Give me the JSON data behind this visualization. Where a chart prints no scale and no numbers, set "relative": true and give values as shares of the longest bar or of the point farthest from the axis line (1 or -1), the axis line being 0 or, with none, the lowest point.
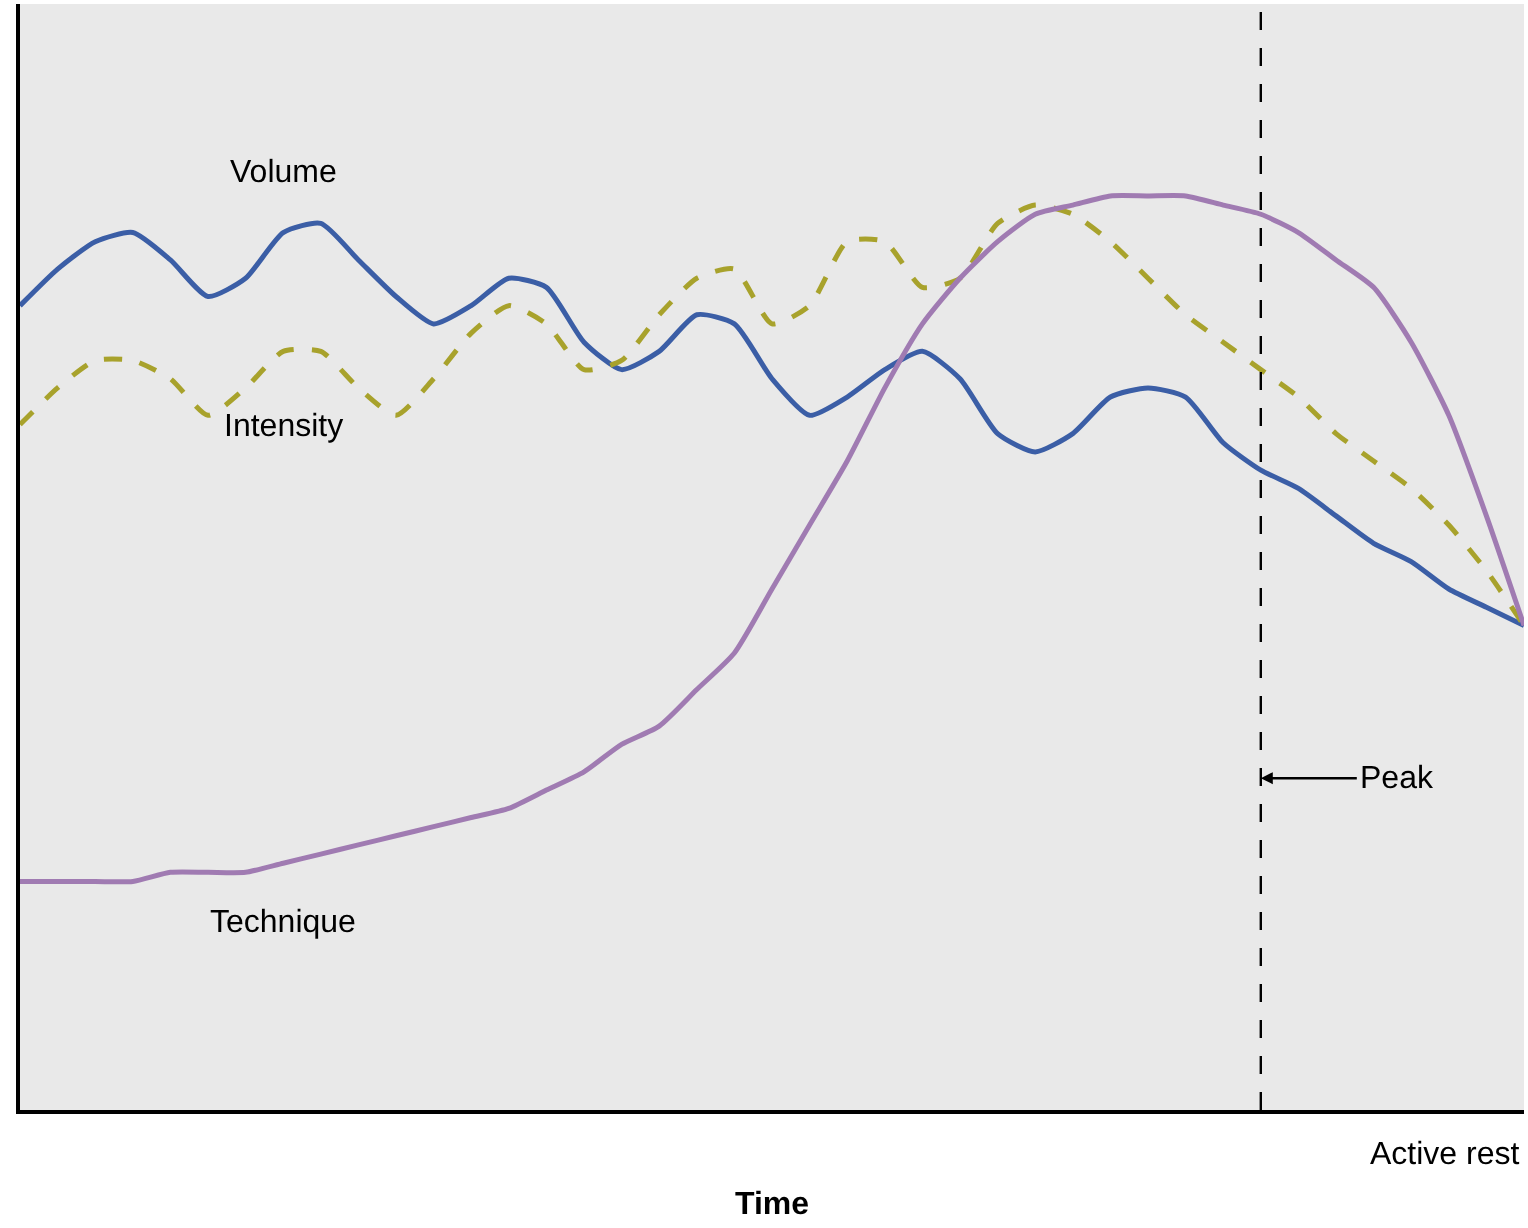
{
  "chart_data": {
    "type": "line",
    "relative": true,
    "xlabel": "Time",
    "categories": [
      null,
      null,
      null,
      null,
      null,
      null,
      null,
      null,
      null,
      null,
      null,
      null,
      null,
      null,
      null,
      null,
      null,
      null,
      null,
      null,
      null,
      null,
      null,
      null,
      null,
      null,
      null,
      null,
      null,
      null,
      null,
      null,
      null,
      null,
      null,
      null,
      null,
      null,
      null,
      null,
      null
    ],
    "series": [
      {
        "name": "Volume",
        "color": "#3b5ea6",
        "line_style": "solid",
        "values": [
          0.88,
          0.92,
          0.95,
          0.96,
          0.93,
          0.89,
          0.91,
          0.96,
          0.97,
          0.93,
          0.89,
          0.86,
          0.88,
          0.91,
          0.9,
          0.84,
          0.81,
          0.83,
          0.87,
          0.86,
          0.8,
          0.76,
          0.78,
          0.81,
          0.83,
          0.8,
          0.74,
          0.72,
          0.74,
          0.78,
          0.79,
          0.78,
          0.73,
          0.7,
          0.68,
          0.65,
          0.62,
          0.6,
          0.57,
          0.55,
          0.53
        ]
      },
      {
        "name": "Intensity",
        "color": "#a8a22c",
        "line_style": "dashed",
        "values": [
          0.75,
          0.79,
          0.82,
          0.82,
          0.8,
          0.76,
          0.79,
          0.83,
          0.83,
          0.79,
          0.76,
          0.8,
          0.85,
          0.88,
          0.86,
          0.81,
          0.82,
          0.87,
          0.91,
          0.92,
          0.86,
          0.88,
          0.95,
          0.95,
          0.9,
          0.91,
          0.97,
          0.99,
          0.98,
          0.95,
          0.91,
          0.87,
          0.84,
          0.81,
          0.78,
          0.74,
          0.71,
          0.68,
          0.64,
          0.59,
          0.53
        ]
      },
      {
        "name": "Technique",
        "color": "#a07bb2",
        "line_style": "solid",
        "values": [
          0.25,
          0.25,
          0.25,
          0.25,
          0.26,
          0.26,
          0.26,
          0.27,
          0.28,
          0.29,
          0.3,
          0.31,
          0.32,
          0.33,
          0.35,
          0.37,
          0.4,
          0.42,
          0.46,
          0.5,
          0.57,
          0.64,
          0.71,
          0.79,
          0.86,
          0.91,
          0.95,
          0.98,
          0.99,
          1,
          1,
          1,
          0.99,
          0.98,
          0.96,
          0.93,
          0.9,
          0.84,
          0.76,
          0.65,
          0.53
        ]
      }
    ],
    "annotations": [
      "Peak",
      "Active rest"
    ],
    "legend": false,
    "marker": "none",
    "tick_labels": false
  }
}
